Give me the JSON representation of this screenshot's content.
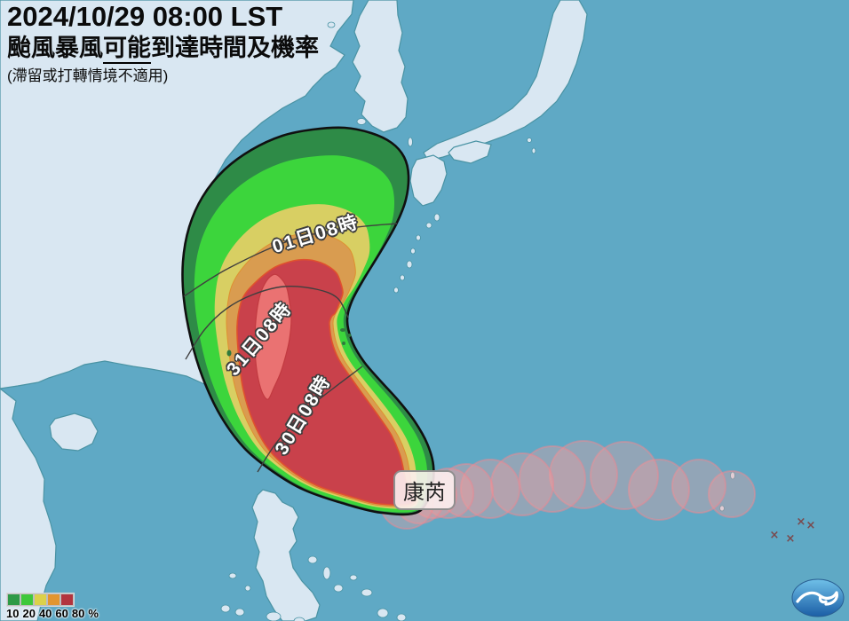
{
  "header": {
    "datetime": "2024/10/29 08:00 LST",
    "title_part1": "颱風暴風",
    "title_underline": "可能",
    "title_part2": "到達時間及機率",
    "note": "(滯留或打轉情境不適用)"
  },
  "storm": {
    "name": "康芮"
  },
  "time_labels": [
    {
      "text": "01日08時"
    },
    {
      "text": "31日08時"
    },
    {
      "text": "30日08時"
    }
  ],
  "legend": {
    "ticks": [
      "10",
      "20",
      "40",
      "60",
      "80"
    ],
    "suffix": "%",
    "colors": [
      "#2e9a46",
      "#3ec83b",
      "#dcd14a",
      "#e2952f",
      "#b2343e"
    ]
  },
  "colors": {
    "ocean": "#5fa9c5",
    "land": "#d9e7f2",
    "coast": "#4a93a4",
    "cone_p10": "#2e8b47",
    "cone_p20": "#3cd53c",
    "cone_p40": "#d8cf63",
    "cone_p60": "#d99c50",
    "cone_p80": "#c9414b",
    "cone_outline": "#101010",
    "red_zone_border": "#e0512d",
    "orange_zone_border": "#de9030",
    "taiwan_fill": "#ea7272",
    "taiwan_border": "#c23a40",
    "island_in_cone": "#2f7a3c",
    "track_circle_fill": "rgba(243,158,158,0.35)",
    "track_circle_edge": "rgba(238,136,146,0.5)",
    "contour_line": "#3f3f3f",
    "x_marker": "#7a4a4e",
    "logo_top": "#6fc0e8",
    "logo_bottom": "#1b5ea6"
  }
}
